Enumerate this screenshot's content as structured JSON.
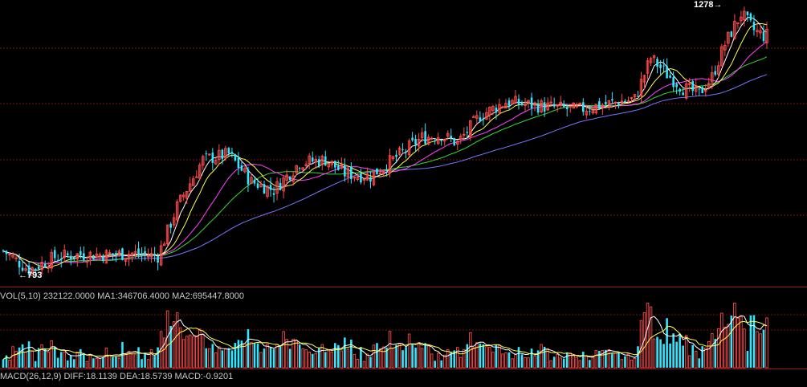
{
  "colors": {
    "background": "#000000",
    "up": "#ff4a4a",
    "down": "#33e6ff",
    "grid": "#7a1515",
    "ma5": "#ffffff",
    "ma10": "#ffff55",
    "ma20": "#ff44ff",
    "ma30": "#33dd33",
    "ma60": "#7777ff",
    "panel_border": "#a01818"
  },
  "price_panel": {
    "high_marker": "1278",
    "low_marker": "793"
  },
  "volume_panel": {
    "header": {
      "name": "VOL(5,10)",
      "value": "232122.0000",
      "ma1": "MA1:346706.4000",
      "ma2": "MA2:695447.8000"
    }
  },
  "macd_panel": {
    "header": {
      "name": "MACD(26,12,9)",
      "diff": "DIFF:18.1139",
      "dea": "DEA:18.5739",
      "macd": "MACD:-0.9201"
    }
  },
  "chart_data": {
    "type": "candlestick",
    "price_high": 1278,
    "price_low": 793,
    "ylim": [
      780,
      1290
    ],
    "grid": true,
    "volume": {
      "current": 232122.0,
      "ma1": 346706.4,
      "ma2": 695447.8,
      "ylim": [
        0,
        1000000
      ]
    },
    "macd": {
      "diff": 18.1139,
      "dea": 18.5739,
      "macd": -0.9201
    },
    "trend_keyframes": [
      [
        0,
        835
      ],
      [
        8,
        800
      ],
      [
        16,
        823
      ],
      [
        24,
        828
      ],
      [
        32,
        828
      ],
      [
        40,
        830
      ],
      [
        48,
        825
      ],
      [
        54,
        915
      ],
      [
        62,
        1000
      ],
      [
        70,
        1010
      ],
      [
        77,
        960
      ],
      [
        84,
        945
      ],
      [
        92,
        995
      ],
      [
        100,
        1000
      ],
      [
        106,
        975
      ],
      [
        114,
        970
      ],
      [
        122,
        1005
      ],
      [
        130,
        1040
      ],
      [
        136,
        1045
      ],
      [
        141,
        1030
      ],
      [
        148,
        1080
      ],
      [
        156,
        1105
      ],
      [
        163,
        1100
      ],
      [
        171,
        1095
      ],
      [
        178,
        1090
      ],
      [
        186,
        1100
      ],
      [
        196,
        1110
      ],
      [
        201,
        1185
      ],
      [
        206,
        1155
      ],
      [
        211,
        1130
      ],
      [
        216,
        1120
      ],
      [
        220,
        1150
      ],
      [
        224,
        1210
      ],
      [
        229,
        1265
      ],
      [
        233,
        1235
      ],
      [
        236,
        1225
      ]
    ]
  }
}
